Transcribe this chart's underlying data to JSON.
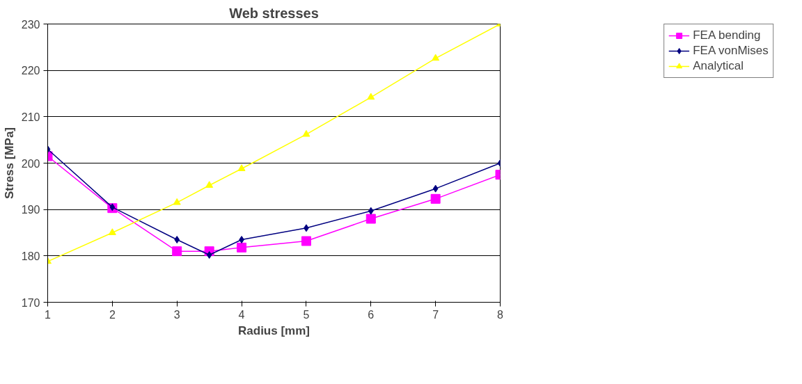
{
  "chart_data": {
    "type": "line",
    "title": "Web stresses",
    "xlabel": "Radius [mm]",
    "ylabel": "Stress [MPa]",
    "x": [
      1,
      2,
      3,
      3.5,
      4,
      5,
      6,
      7,
      8
    ],
    "series": [
      {
        "name": "FEA bending",
        "color": "#ff00ff",
        "marker": "square",
        "values": [
          201.5,
          190.3,
          181,
          181,
          181.8,
          183.2,
          188,
          192.3,
          197.5
        ]
      },
      {
        "name": "FEA vonMises",
        "color": "#000080",
        "marker": "diamond",
        "values": [
          203,
          190.5,
          183.5,
          180.2,
          183.5,
          186,
          189.7,
          194.5,
          200
        ]
      },
      {
        "name": "Analytical",
        "color": "#ffff00",
        "marker": "triangle",
        "values": [
          178.8,
          185,
          191.5,
          195.2,
          198.8,
          206.2,
          214.2,
          222.6,
          230
        ]
      }
    ],
    "xlim": [
      1,
      8
    ],
    "ylim": [
      170,
      230
    ],
    "xticks": [
      1,
      2,
      3,
      4,
      5,
      6,
      7,
      8
    ],
    "yticks": [
      170,
      180,
      190,
      200,
      210,
      220,
      230
    ],
    "grid": "y",
    "legend": "top right"
  }
}
